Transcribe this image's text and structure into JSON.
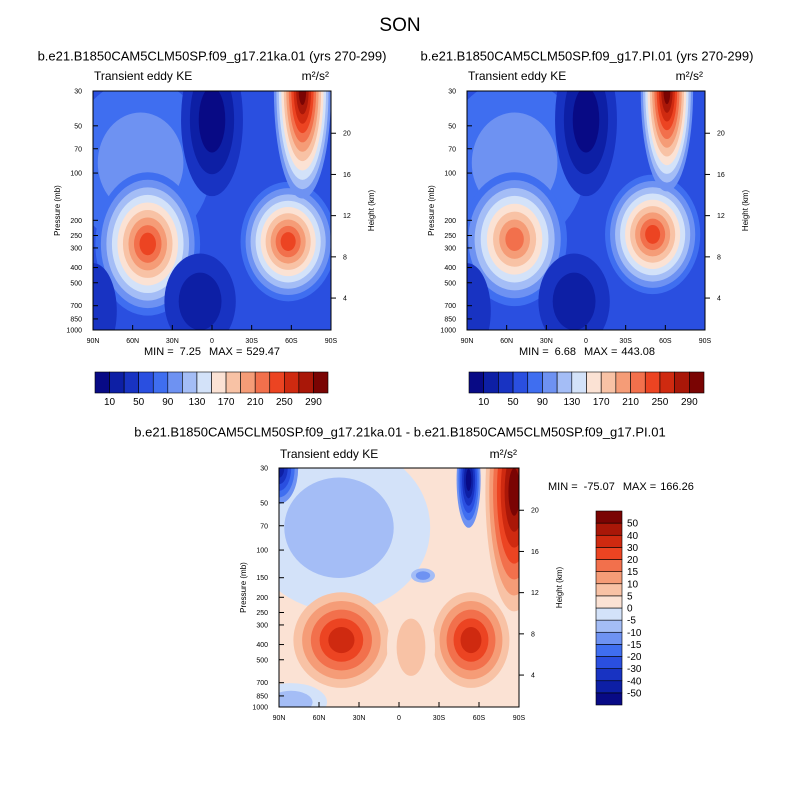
{
  "suptitle": "SON",
  "chart_data": [
    {
      "type": "contour",
      "title": "b.e21.B1850CAM5CLM50SP.f09_g17.21ka.01 (yrs 270-299)",
      "left_string": "Transient eddy KE",
      "right_string": "m²/s²",
      "ylabel": "Pressure (mb)",
      "y2label": "Height (km)",
      "xlim": [
        90,
        -90
      ],
      "xticks": [
        {
          "value": 90,
          "label": "90N"
        },
        {
          "value": 60,
          "label": "60N"
        },
        {
          "value": 30,
          "label": "30N"
        },
        0,
        {
          "value": -30,
          "label": "30S"
        },
        {
          "value": -60,
          "label": "60S"
        },
        {
          "value": -90,
          "label": "90S"
        }
      ],
      "ylim": [
        1000,
        30
      ],
      "ylog": true,
      "yticks": [
        30,
        50,
        70,
        100,
        200,
        250,
        300,
        400,
        500,
        700,
        850,
        1000
      ],
      "y2lim": [
        0.9,
        24.1
      ],
      "y2ticks": [
        4,
        8,
        12,
        16,
        20
      ],
      "min_label": "MIN =",
      "min": 7.25,
      "max_label": "MAX =",
      "max": 529.47,
      "colorbar": {
        "orientation": "horizontal",
        "labels": [
          10,
          50,
          90,
          130,
          170,
          210,
          250,
          290
        ]
      }
    },
    {
      "type": "contour",
      "title": "b.e21.B1850CAM5CLM50SP.f09_g17.PI.01 (yrs 270-299)",
      "left_string": "Transient eddy KE",
      "right_string": "m²/s²",
      "ylabel": "Pressure (mb)",
      "y2label": "Height (km)",
      "xlim": [
        90,
        -90
      ],
      "xticks": [
        {
          "value": 90,
          "label": "90N"
        },
        {
          "value": 60,
          "label": "60N"
        },
        {
          "value": 30,
          "label": "30N"
        },
        0,
        {
          "value": -30,
          "label": "30S"
        },
        {
          "value": -60,
          "label": "60S"
        },
        {
          "value": -90,
          "label": "90S"
        }
      ],
      "ylim": [
        1000,
        30
      ],
      "ylog": true,
      "yticks": [
        30,
        50,
        70,
        100,
        200,
        250,
        300,
        400,
        500,
        700,
        850,
        1000
      ],
      "y2lim": [
        0.9,
        24.1
      ],
      "y2ticks": [
        4,
        8,
        12,
        16,
        20
      ],
      "min_label": "MIN =",
      "min": 6.68,
      "max_label": "MAX =",
      "max": 443.08,
      "colorbar": {
        "orientation": "horizontal",
        "labels": [
          10,
          50,
          90,
          130,
          170,
          210,
          250,
          290
        ]
      }
    },
    {
      "type": "contour",
      "title": "b.e21.B1850CAM5CLM50SP.f09_g17.21ka.01 - b.e21.B1850CAM5CLM50SP.f09_g17.PI.01",
      "left_string": "Transient eddy KE",
      "right_string": "m²/s²",
      "ylabel": "Pressure (mb)",
      "y2label": "Height (km)",
      "xlim": [
        90,
        -90
      ],
      "xticks": [
        {
          "value": 90,
          "label": "90N"
        },
        {
          "value": 60,
          "label": "60N"
        },
        {
          "value": 30,
          "label": "30N"
        },
        0,
        {
          "value": -30,
          "label": "30S"
        },
        {
          "value": -60,
          "label": "60S"
        },
        {
          "value": -90,
          "label": "90S"
        }
      ],
      "ylim": [
        1000,
        30
      ],
      "ylog": true,
      "yticks": [
        30,
        50,
        70,
        100,
        150,
        200,
        250,
        300,
        400,
        500,
        700,
        850,
        1000
      ],
      "y2lim": [
        0.9,
        24.1
      ],
      "y2ticks": [
        4,
        8,
        12,
        16,
        20
      ],
      "min_label": "MIN =",
      "min": -75.07,
      "max_label": "MAX =",
      "max": 166.26,
      "colorbar": {
        "orientation": "vertical",
        "labels": [
          50,
          40,
          30,
          20,
          15,
          10,
          5,
          0,
          -5,
          -10,
          -15,
          -20,
          -30,
          -40,
          -50
        ]
      }
    }
  ],
  "colors": [
    "#080a85",
    "#0d1fa5",
    "#1833c2",
    "#2a4fe0",
    "#3f6ef0",
    "#6e92f2",
    "#a4bdf6",
    "#d3e2f9",
    "#fbe2d4",
    "#f8c2a5",
    "#f59c77",
    "#f2704c",
    "#ec4422",
    "#cf2a10",
    "#a91708",
    "#7a0403"
  ]
}
